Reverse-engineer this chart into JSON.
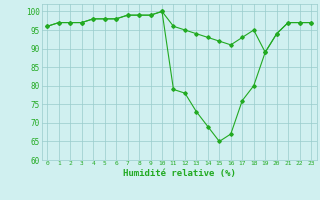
{
  "title": "",
  "xlabel": "Humidité relative (%)",
  "ylabel": "",
  "x": [
    0,
    1,
    2,
    3,
    4,
    5,
    6,
    7,
    8,
    9,
    10,
    11,
    12,
    13,
    14,
    15,
    16,
    17,
    18,
    19,
    20,
    21,
    22,
    23
  ],
  "line1": [
    96,
    97,
    97,
    97,
    98,
    98,
    98,
    99,
    99,
    99,
    100,
    96,
    95,
    94,
    93,
    92,
    91,
    93,
    95,
    89,
    94,
    97,
    97,
    97
  ],
  "line2": [
    96,
    97,
    97,
    97,
    98,
    98,
    98,
    99,
    99,
    99,
    100,
    79,
    78,
    73,
    69,
    65,
    67,
    76,
    80,
    89,
    94,
    97,
    97,
    97
  ],
  "line_color": "#22aa22",
  "bg_color": "#d0f0f0",
  "grid_color": "#99cccc",
  "ylim": [
    60,
    102
  ],
  "yticks": [
    60,
    65,
    70,
    75,
    80,
    85,
    90,
    95,
    100
  ],
  "xlim": [
    -0.5,
    23.5
  ],
  "marker": "D",
  "marker_size": 1.8,
  "linewidth": 0.8
}
